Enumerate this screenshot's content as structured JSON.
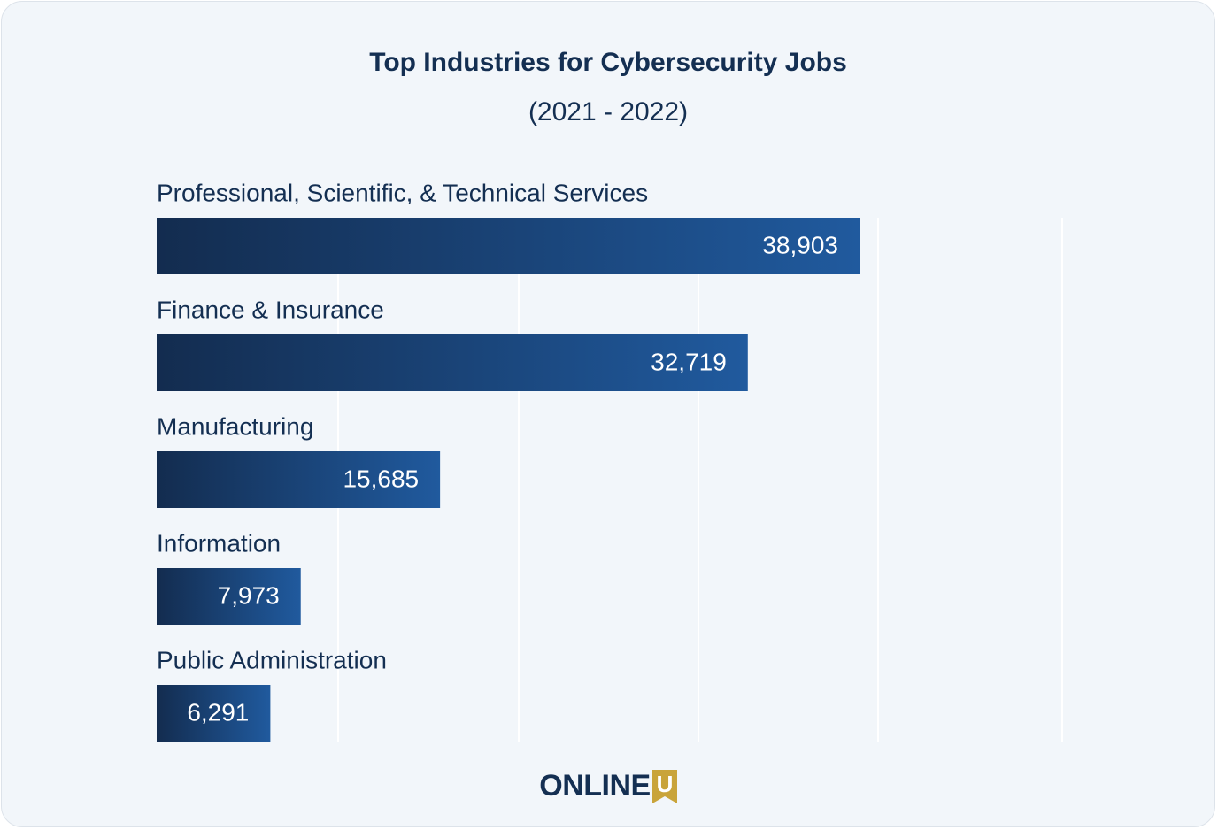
{
  "chart_data": {
    "type": "bar",
    "orientation": "horizontal",
    "title": "Top Industries for Cybersecurity Jobs",
    "subtitle": "(2021 - 2022)",
    "categories": [
      "Professional, Scientific, & Technical Services",
      "Finance & Insurance",
      "Manufacturing",
      "Information",
      "Public Administration"
    ],
    "values": [
      38903,
      32719,
      15685,
      7973,
      6291
    ],
    "value_labels": [
      "38,903",
      "32,719",
      "15,685",
      "7,973",
      "6,291"
    ],
    "xlim": [
      0,
      50000
    ],
    "grid": true,
    "colors": {
      "bar_start": "#132c4f",
      "bar_end": "#205a9e",
      "grid": "#ffffff",
      "text": "#142f52"
    }
  },
  "brand": {
    "logo_text": "ONLINE",
    "logo_mark": "U",
    "logo_mark_color": "#c9a43a"
  }
}
